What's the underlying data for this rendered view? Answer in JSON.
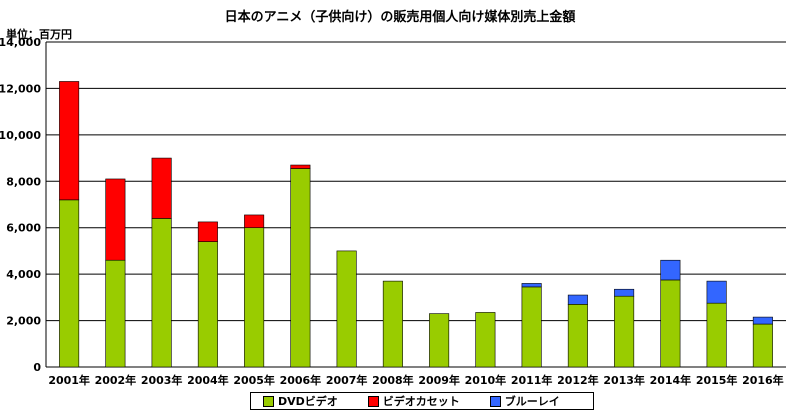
{
  "chart_data": {
    "type": "bar",
    "stacked": true,
    "title": "日本のアニメ（子供向け）の販売用個人向け媒体別売上金額",
    "unit_label": "単位：百万円",
    "categories": [
      "2001年",
      "2002年",
      "2003年",
      "2004年",
      "2005年",
      "2006年",
      "2007年",
      "2008年",
      "2009年",
      "2010年",
      "2011年",
      "2012年",
      "2013年",
      "2014年",
      "2015年",
      "2016年"
    ],
    "ylim": [
      0,
      14000
    ],
    "yticks": [
      "0",
      "2,000",
      "4,000",
      "6,000",
      "8,000",
      "10,000",
      "12,000",
      "14,000"
    ],
    "ytick_values": [
      0,
      2000,
      4000,
      6000,
      8000,
      10000,
      12000,
      14000
    ],
    "grid": true,
    "legend_position": "bottom",
    "series": [
      {
        "name": "DVDビデオ",
        "color": "#99cc00",
        "values": [
          7200,
          4600,
          6400,
          5400,
          6000,
          8550,
          5000,
          3700,
          2300,
          2350,
          3450,
          2700,
          3050,
          3750,
          2750,
          1850
        ]
      },
      {
        "name": "ビデオカセット",
        "color": "#ff0000",
        "values": [
          5100,
          3500,
          2600,
          850,
          550,
          150,
          0,
          0,
          0,
          0,
          0,
          0,
          0,
          0,
          0,
          0
        ]
      },
      {
        "name": "ブルーレイ",
        "color": "#3366ff",
        "values": [
          0,
          0,
          0,
          0,
          0,
          0,
          0,
          0,
          0,
          0,
          150,
          400,
          300,
          850,
          950,
          300
        ]
      }
    ]
  }
}
